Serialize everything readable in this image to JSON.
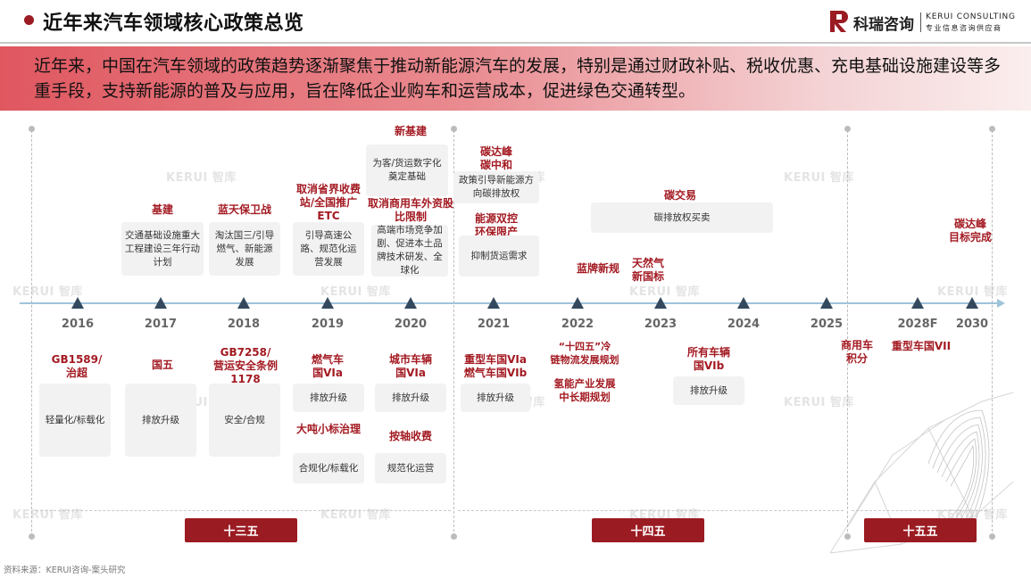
{
  "header": {
    "title": "近年来汽车领域核心政策总览",
    "logo_cn": "科瑞咨询",
    "logo_en": "KERUI CONSULTING",
    "logo_sub": "专业信息咨询供应商",
    "logo_mark": "R"
  },
  "banner": {
    "text": "近年来，中国在汽车领域的政策趋势逐渐聚焦于推动新能源汽车的发展，特别是通过财政补贴、税收优惠、充电基础设施建设等多重手段，支持新能源的普及与应用，旨在降低企业购车和运营成本，促进绿色交通转型。"
  },
  "timeline": {
    "years": [
      "2016",
      "2017",
      "2018",
      "2019",
      "2020",
      "2021",
      "2022",
      "2023",
      "2024",
      "2025",
      "2028F",
      "2030"
    ]
  },
  "top_events": {
    "y2017": {
      "title": "基建",
      "desc": "交通基础设施重大工程建设三年行动计划"
    },
    "y2018": {
      "title": "蓝天保卫战",
      "desc": "淘汰国三/引导燃气、新能源发展"
    },
    "y2019": {
      "title": "取消省界收费站/全国推广ETC",
      "desc": "引导高速公路、规范化运营发展"
    },
    "y2020a": {
      "title": "新基建",
      "desc": "为客/货运数字化奠定基础"
    },
    "y2020b": {
      "title": "取消商用车外资股比限制",
      "desc": "高端市场竞争加剧、促进本土品牌技术研发、全球化"
    },
    "y2021a": {
      "title": "碳达峰\n碳中和",
      "desc": "政策引导新能源方向碳排放权"
    },
    "y2021b": {
      "title": "能源双控\n环保限产",
      "desc": "抑制货运需求"
    },
    "y2022": {
      "title": "蓝牌新规"
    },
    "y2023a": {
      "title": "天然气\n新国标"
    },
    "y2023b": {
      "title": "碳交易",
      "desc": "碳排放权买卖"
    },
    "y2030": {
      "title": "碳达峰\n目标完成"
    }
  },
  "bottom_events": {
    "y2016": {
      "title": "GB1589/\n治超",
      "desc": "轻量化/标载化"
    },
    "y2017": {
      "title": "国五",
      "desc": "排放升级"
    },
    "y2018": {
      "title": "GB7258/\n营运安全条例1178",
      "desc": "安全/合规"
    },
    "y2019a": {
      "title": "燃气车\n国VIa",
      "desc": "排放升级"
    },
    "y2019b": {
      "title": "大吨小标治理",
      "desc": "合规化/标载化"
    },
    "y2020a": {
      "title": "城市车辆\n国VIa",
      "desc": "排放升级"
    },
    "y2020b": {
      "title": "按轴收费",
      "desc": "规范化运营"
    },
    "y2021": {
      "title": "重型车国VIa\n燃气车国VIb",
      "desc": "排放升级"
    },
    "y2022a": {
      "title": "“十四五”冷\n链物流发展规划"
    },
    "y2022b": {
      "title": "氢能产业发展\n中长期规划"
    },
    "y2023": {
      "title": "所有车辆\n国VIb",
      "desc": "排放升级"
    },
    "y2025": {
      "title": "商用车\n积分"
    },
    "y2028": {
      "title": "重型车国VII"
    }
  },
  "periods": [
    "十三五",
    "十四五",
    "十五五"
  ],
  "watermark": "KERUI 智库",
  "source": "资料来源：KERUI咨询-案头研究",
  "colors": {
    "accent": "#9b1b22",
    "axis": "#9fc3d8",
    "marker": "#34495e",
    "card": "#f2f2f2"
  }
}
